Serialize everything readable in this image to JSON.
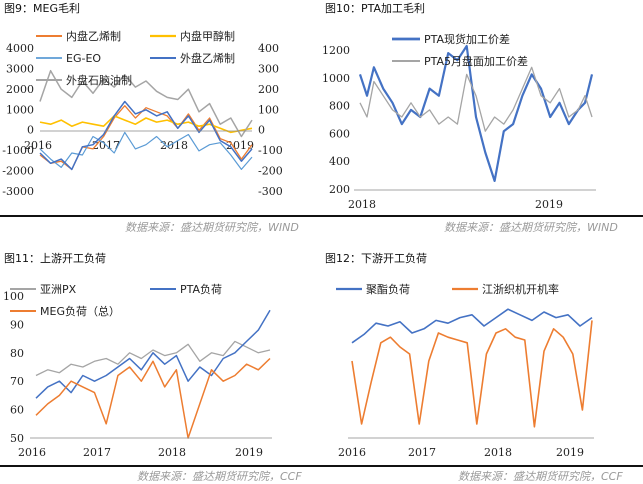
{
  "captions": {
    "fig9": "图9：MEG毛利",
    "fig10": "图10：PTA加工毛利",
    "fig11": "图11：上游开工负荷",
    "fig12": "图12：下游开工负荷"
  },
  "sources": {
    "top_left": "数据来源：盛达期货研究院，WIND",
    "top_right": "数据来源：盛达期货研究院，WIND",
    "bottom_left": "数据来源：盛达期货研究院，CCF",
    "bottom_right": "数据来源：盛达期货研究院，CCF"
  },
  "colors": {
    "blue": "#4472c4",
    "orange": "#ed7d31",
    "gray": "#a5a5a5",
    "yellow": "#ffc000",
    "lightblue": "#5b9bd5"
  },
  "chart_data": [
    {
      "id": "fig9",
      "type": "line",
      "title": "MEG毛利",
      "xticks": [
        "2016",
        "2017",
        "2018",
        "2019"
      ],
      "yticks_left": [
        "4000",
        "3000",
        "2000",
        "1000",
        "0",
        "-1000",
        "-2000",
        "-3000"
      ],
      "yticks_right": [
        "400",
        "300",
        "200",
        "100",
        "0",
        "-100",
        "-200",
        "-300"
      ],
      "ylim_left": [
        -3000,
        4000
      ],
      "ylim_right": [
        -300,
        400
      ],
      "series": [
        {
          "name": "内盘乙烯制",
          "color": "#ed7d31",
          "axis": "left",
          "width": 1.3,
          "t": [
            0,
            0.05,
            0.1,
            0.15,
            0.2,
            0.25,
            0.3,
            0.35,
            0.4,
            0.45,
            0.5,
            0.55,
            0.6,
            0.65,
            0.7,
            0.75,
            0.8,
            0.85,
            0.9,
            0.95,
            1
          ],
          "v": [
            -1300,
            -1700,
            -1600,
            -2000,
            -900,
            -1000,
            -400,
            500,
            1100,
            500,
            1000,
            800,
            600,
            0,
            700,
            -100,
            500,
            -500,
            -700,
            -1500,
            -800
          ]
        },
        {
          "name": "内盘甲醇制",
          "color": "#ffc000",
          "axis": "left",
          "width": 1.6,
          "t": [
            0,
            0.05,
            0.1,
            0.15,
            0.2,
            0.25,
            0.3,
            0.35,
            0.4,
            0.45,
            0.5,
            0.55,
            0.6,
            0.65,
            0.7,
            0.75,
            0.8,
            0.85,
            0.9,
            0.95,
            1
          ],
          "v": [
            300,
            200,
            400,
            100,
            300,
            200,
            100,
            600,
            400,
            200,
            500,
            300,
            400,
            200,
            300,
            100,
            200,
            0,
            -200,
            -100,
            0
          ]
        },
        {
          "name": "EG-EO",
          "color": "#5b9bd5",
          "axis": "left",
          "width": 1.2,
          "t": [
            0,
            0.05,
            0.1,
            0.15,
            0.2,
            0.25,
            0.3,
            0.35,
            0.4,
            0.45,
            0.5,
            0.55,
            0.6,
            0.65,
            0.7,
            0.75,
            0.8,
            0.85,
            0.9,
            0.95,
            1
          ],
          "v": [
            -1000,
            -1500,
            -1900,
            -1200,
            -1300,
            -400,
            -700,
            -1200,
            -200,
            -1000,
            -800,
            -400,
            -900,
            -600,
            -300,
            -1100,
            -800,
            -700,
            -1300,
            -2000,
            -1400
          ]
        },
        {
          "name": "外盘乙烯制",
          "color": "#4472c4",
          "axis": "right",
          "width": 1.5,
          "t": [
            0,
            0.05,
            0.1,
            0.15,
            0.2,
            0.25,
            0.3,
            0.35,
            0.4,
            0.45,
            0.5,
            0.55,
            0.6,
            0.65,
            0.7,
            0.75,
            0.8,
            0.85,
            0.9,
            0.95,
            1
          ],
          "v": [
            -120,
            -170,
            -150,
            -200,
            -90,
            -80,
            -30,
            60,
            130,
            70,
            90,
            60,
            80,
            0,
            60,
            -20,
            40,
            -60,
            -90,
            -160,
            -100
          ]
        },
        {
          "name": "外盘石脑油制",
          "color": "#a5a5a5",
          "axis": "right",
          "width": 1.5,
          "t": [
            0,
            0.05,
            0.1,
            0.15,
            0.2,
            0.25,
            0.3,
            0.35,
            0.4,
            0.45,
            0.5,
            0.55,
            0.6,
            0.65,
            0.7,
            0.75,
            0.8,
            0.85,
            0.9,
            0.95,
            1
          ],
          "v": [
            130,
            280,
            190,
            150,
            230,
            170,
            240,
            200,
            260,
            200,
            230,
            180,
            150,
            140,
            190,
            80,
            120,
            20,
            50,
            -40,
            40
          ]
        }
      ]
    },
    {
      "id": "fig10",
      "type": "line",
      "title": "PTA加工毛利",
      "xticks": [
        "2018",
        "2019"
      ],
      "yticks": [
        "1200",
        "1000",
        "800",
        "600",
        "400",
        "200"
      ],
      "ylim": [
        200,
        1200
      ],
      "series": [
        {
          "name": "PTA现货加工价差",
          "color": "#4472c4",
          "width": 2.2,
          "t": [
            0,
            0.03,
            0.06,
            0.1,
            0.14,
            0.18,
            0.22,
            0.26,
            0.3,
            0.34,
            0.38,
            0.42,
            0.46,
            0.5,
            0.54,
            0.58,
            0.62,
            0.66,
            0.7,
            0.74,
            0.78,
            0.82,
            0.86,
            0.9,
            0.94,
            0.97,
            1
          ],
          "v": [
            1000,
            850,
            1050,
            900,
            800,
            650,
            750,
            700,
            900,
            850,
            1150,
            1100,
            1200,
            700,
            450,
            250,
            600,
            650,
            850,
            1000,
            900,
            700,
            800,
            650,
            750,
            800,
            1000
          ]
        },
        {
          "name": "PTA5月盘面加工价差",
          "color": "#a5a5a5",
          "width": 1.3,
          "t": [
            0,
            0.03,
            0.06,
            0.1,
            0.14,
            0.18,
            0.22,
            0.26,
            0.3,
            0.34,
            0.38,
            0.42,
            0.46,
            0.5,
            0.54,
            0.58,
            0.62,
            0.66,
            0.7,
            0.74,
            0.78,
            0.82,
            0.86,
            0.9,
            0.94,
            0.97,
            1
          ],
          "v": [
            800,
            700,
            950,
            850,
            750,
            700,
            800,
            700,
            750,
            650,
            700,
            650,
            1000,
            850,
            600,
            700,
            650,
            750,
            900,
            1050,
            850,
            800,
            900,
            700,
            750,
            850,
            700
          ]
        }
      ]
    },
    {
      "id": "fig11",
      "type": "line",
      "title": "上游开工负荷",
      "xticks": [
        "2016",
        "2017",
        "2018",
        "2019"
      ],
      "yticks": [
        "100",
        "90",
        "80",
        "70",
        "60",
        "50"
      ],
      "ylim": [
        50,
        100
      ],
      "series": [
        {
          "name": "亚洲PX",
          "color": "#a5a5a5",
          "width": 1.3,
          "t": [
            0,
            0.05,
            0.1,
            0.15,
            0.2,
            0.25,
            0.3,
            0.35,
            0.4,
            0.45,
            0.5,
            0.55,
            0.6,
            0.65,
            0.7,
            0.75,
            0.8,
            0.85,
            0.9,
            0.95,
            1
          ],
          "v": [
            72,
            74,
            73,
            76,
            75,
            77,
            78,
            76,
            80,
            78,
            81,
            79,
            80,
            83,
            77,
            80,
            79,
            84,
            82,
            80,
            81
          ]
        },
        {
          "name": "PTA负荷",
          "color": "#4472c4",
          "width": 1.5,
          "t": [
            0,
            0.05,
            0.1,
            0.15,
            0.2,
            0.25,
            0.3,
            0.35,
            0.4,
            0.45,
            0.5,
            0.55,
            0.6,
            0.65,
            0.7,
            0.75,
            0.8,
            0.85,
            0.9,
            0.95,
            1
          ],
          "v": [
            64,
            68,
            70,
            66,
            72,
            70,
            72,
            75,
            78,
            74,
            80,
            76,
            79,
            70,
            75,
            72,
            78,
            80,
            84,
            88,
            95
          ]
        },
        {
          "name": "MEG负荷（总）",
          "color": "#ed7d31",
          "width": 1.5,
          "t": [
            0,
            0.05,
            0.1,
            0.15,
            0.2,
            0.25,
            0.3,
            0.35,
            0.4,
            0.45,
            0.5,
            0.55,
            0.6,
            0.65,
            0.7,
            0.75,
            0.8,
            0.85,
            0.9,
            0.95,
            1
          ],
          "v": [
            58,
            62,
            65,
            70,
            68,
            66,
            55,
            72,
            75,
            70,
            77,
            68,
            74,
            50,
            62,
            74,
            70,
            72,
            76,
            74,
            78
          ]
        }
      ]
    },
    {
      "id": "fig12",
      "type": "line",
      "title": "下游开工负荷",
      "xticks": [
        "2016",
        "2017",
        "2018",
        "2019"
      ],
      "ylim": [
        0,
        100
      ],
      "series": [
        {
          "name": "聚酯负荷",
          "color": "#4472c4",
          "width": 1.6,
          "t": [
            0,
            0.05,
            0.1,
            0.15,
            0.2,
            0.25,
            0.3,
            0.35,
            0.4,
            0.45,
            0.5,
            0.55,
            0.6,
            0.65,
            0.7,
            0.75,
            0.8,
            0.85,
            0.9,
            0.95,
            1
          ],
          "v": [
            68,
            74,
            82,
            80,
            83,
            75,
            78,
            84,
            82,
            86,
            88,
            80,
            86,
            92,
            88,
            84,
            90,
            86,
            88,
            80,
            86
          ]
        },
        {
          "name": "江浙织机开机率",
          "color": "#ed7d31",
          "width": 1.6,
          "t": [
            0,
            0.04,
            0.08,
            0.12,
            0.16,
            0.2,
            0.24,
            0.28,
            0.32,
            0.36,
            0.4,
            0.44,
            0.48,
            0.52,
            0.56,
            0.6,
            0.64,
            0.68,
            0.72,
            0.76,
            0.8,
            0.84,
            0.88,
            0.92,
            0.96,
            1
          ],
          "v": [
            55,
            10,
            40,
            68,
            72,
            65,
            60,
            10,
            55,
            75,
            72,
            70,
            68,
            10,
            60,
            75,
            78,
            72,
            70,
            8,
            62,
            78,
            72,
            60,
            20,
            84
          ]
        }
      ]
    }
  ]
}
